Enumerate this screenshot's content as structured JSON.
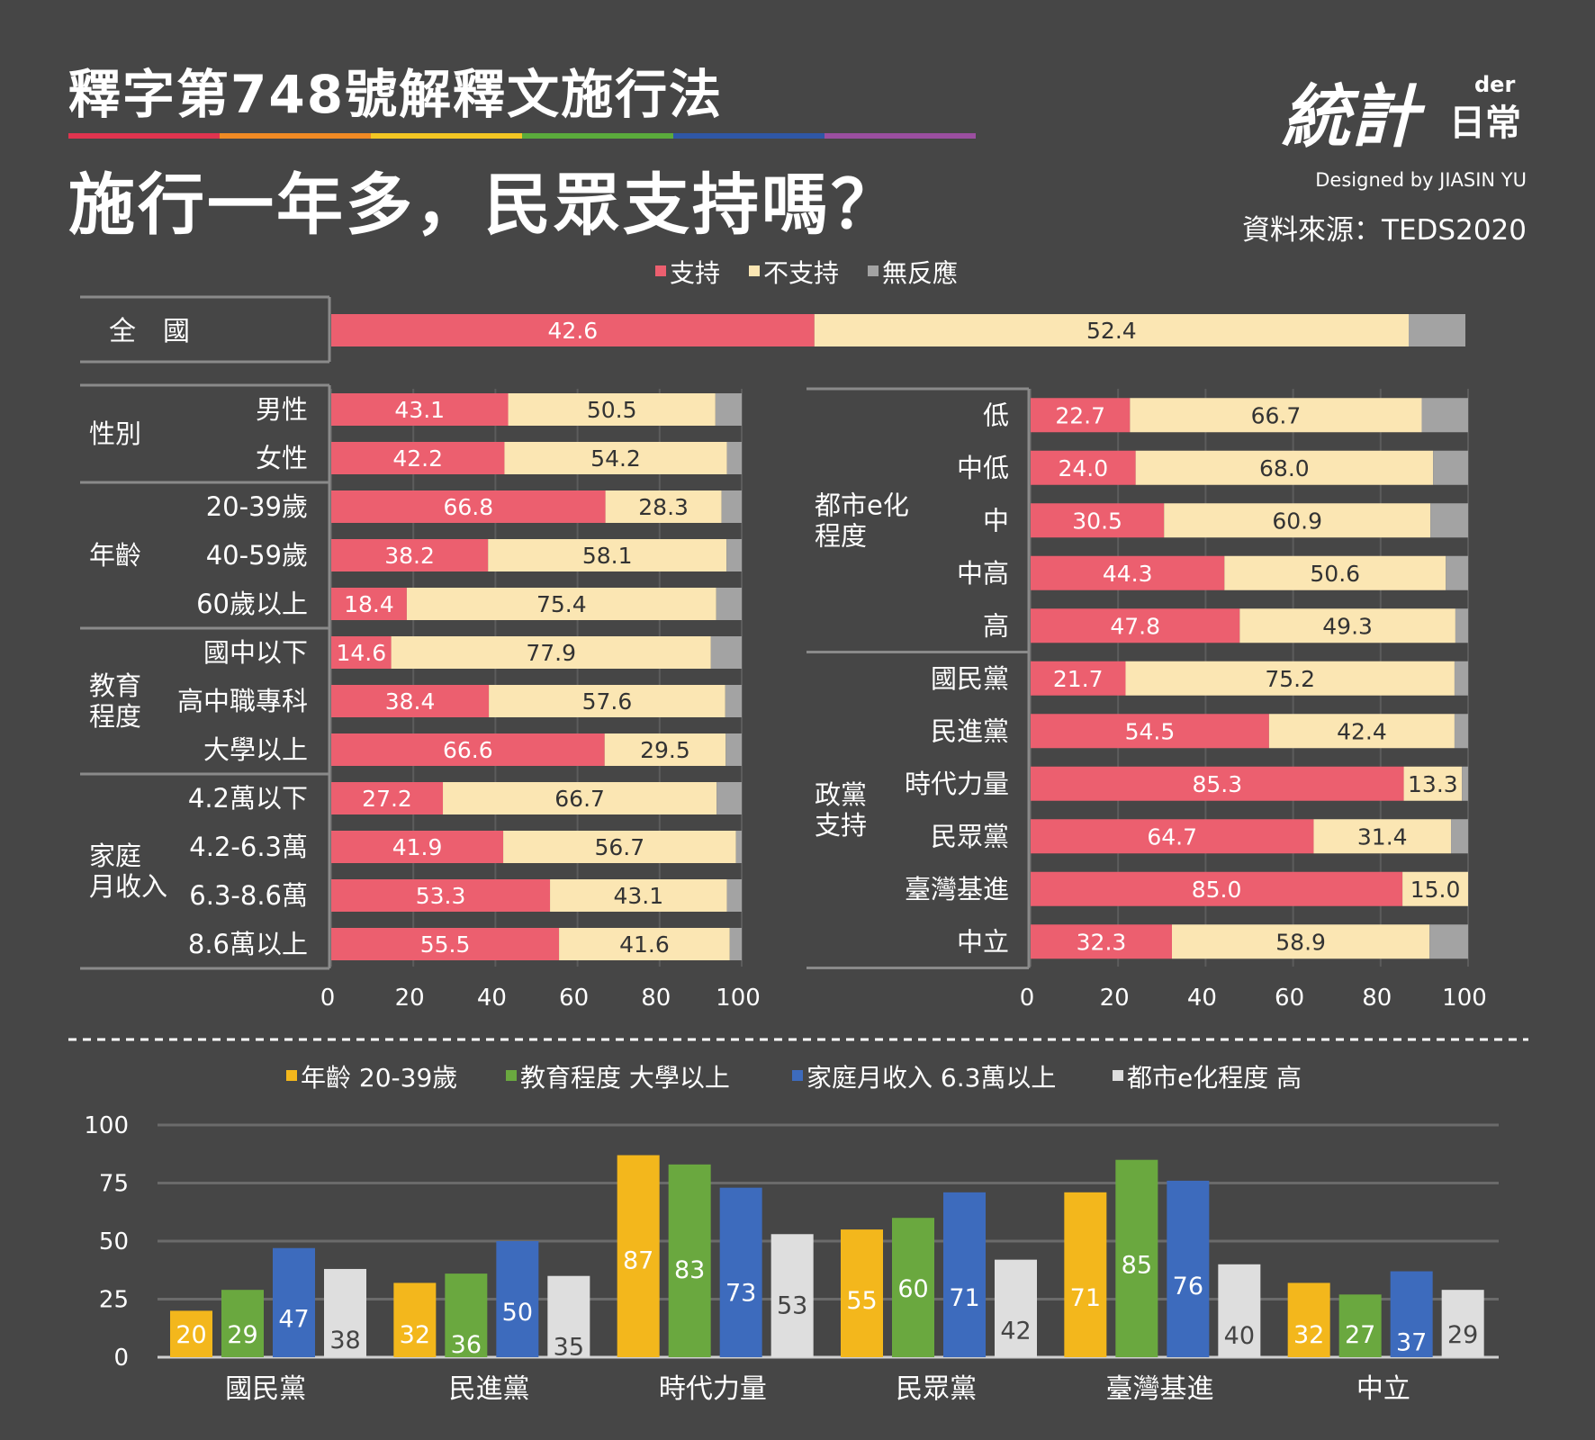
{
  "header": {
    "title_line1": "釋字第748號解釋文施行法",
    "title_line2": "施行一年多，民眾支持嗎？",
    "designer": "Designed by JIASIN YU",
    "source": "資料來源：TEDS2020",
    "logo_text_main": "統計",
    "logo_text_der": "der",
    "logo_text_daily": "日常",
    "rainbow_colors": [
      "#e0344f",
      "#f08a24",
      "#f3c623",
      "#5bab3c",
      "#2f57a6",
      "#9b4fa0"
    ]
  },
  "colors": {
    "support": "#ec5f6f",
    "not_support": "#fbe6b3",
    "no_response": "#a3a3a3",
    "background": "#464646",
    "grid": "#6b6b6b",
    "age_series": "#f3b71c",
    "edu_series": "#6aa83f",
    "income_series": "#3d6bbd",
    "urban_series": "#dedede"
  },
  "chart_data": [
    {
      "type": "bar",
      "orientation": "horizontal",
      "stacked": true,
      "legend": [
        "支持",
        "不支持",
        "無反應"
      ],
      "legend_position": "top",
      "xlim": [
        0,
        100
      ],
      "x_ticks": [
        "0",
        "20",
        "40",
        "60",
        "80",
        "100"
      ],
      "national": {
        "label": "全　國",
        "support": 42.6,
        "not_support": 52.4
      },
      "left_groups": [
        {
          "group": "性別",
          "rows": [
            {
              "label": "男性",
              "support": 43.1,
              "not_support": 50.5
            },
            {
              "label": "女性",
              "support": 42.2,
              "not_support": 54.2
            }
          ]
        },
        {
          "group": "年齡",
          "rows": [
            {
              "label": "20-39歲",
              "support": 66.8,
              "not_support": 28.3
            },
            {
              "label": "40-59歲",
              "support": 38.2,
              "not_support": 58.1
            },
            {
              "label": "60歲以上",
              "support": 18.4,
              "not_support": 75.4
            }
          ]
        },
        {
          "group": "教育程度",
          "group_lines": [
            "教育",
            "程度"
          ],
          "rows": [
            {
              "label": "國中以下",
              "support": 14.6,
              "not_support": 77.9
            },
            {
              "label": "高中職專科",
              "support": 38.4,
              "not_support": 57.6
            },
            {
              "label": "大學以上",
              "support": 66.6,
              "not_support": 29.5
            }
          ]
        },
        {
          "group": "家庭月收入",
          "group_lines": [
            "家庭",
            "月收入"
          ],
          "rows": [
            {
              "label": "4.2萬以下",
              "support": 27.2,
              "not_support": 66.7
            },
            {
              "label": "4.2-6.3萬",
              "support": 41.9,
              "not_support": 56.7
            },
            {
              "label": "6.3-8.6萬",
              "support": 53.3,
              "not_support": 43.1
            },
            {
              "label": "8.6萬以上",
              "support": 55.5,
              "not_support": 41.6
            }
          ]
        }
      ],
      "right_groups": [
        {
          "group": "都市e化程度",
          "group_lines": [
            "都市e化",
            "程度"
          ],
          "rows": [
            {
              "label": "低",
              "support": 22.7,
              "not_support": 66.7
            },
            {
              "label": "中低",
              "support": 24.0,
              "not_support": 68.0
            },
            {
              "label": "中",
              "support": 30.5,
              "not_support": 60.9
            },
            {
              "label": "中高",
              "support": 44.3,
              "not_support": 50.6
            },
            {
              "label": "高",
              "support": 47.8,
              "not_support": 49.3
            }
          ]
        },
        {
          "group": "政黨支持",
          "group_lines": [
            "政黨",
            "支持"
          ],
          "rows": [
            {
              "label": "國民黨",
              "support": 21.7,
              "not_support": 75.2
            },
            {
              "label": "民進黨",
              "support": 54.5,
              "not_support": 42.4
            },
            {
              "label": "時代力量",
              "support": 85.3,
              "not_support": 13.3
            },
            {
              "label": "民眾黨",
              "support": 64.7,
              "not_support": 31.4
            },
            {
              "label": "臺灣基進",
              "support": 85.0,
              "not_support": 15.0
            },
            {
              "label": "中立",
              "support": 32.3,
              "not_support": 58.9
            }
          ]
        }
      ]
    },
    {
      "type": "bar",
      "orientation": "vertical",
      "categories": [
        "國民黨",
        "民進黨",
        "時代力量",
        "民眾黨",
        "臺灣基進",
        "中立"
      ],
      "ylim": [
        0,
        100
      ],
      "y_ticks": [
        "0",
        "25",
        "50",
        "75",
        "100"
      ],
      "legend_position": "top",
      "grid": true,
      "series": [
        {
          "name": "年齡 20-39歲",
          "values": [
            20,
            32,
            87,
            55,
            71,
            32
          ]
        },
        {
          "name": "教育程度 大學以上",
          "values": [
            29,
            36,
            83,
            60,
            85,
            27
          ]
        },
        {
          "name": "家庭月收入 6.3萬以上",
          "values": [
            47,
            50,
            73,
            71,
            76,
            37
          ]
        },
        {
          "name": "都市e化程度 高",
          "values": [
            38,
            35,
            53,
            42,
            40,
            29
          ]
        }
      ]
    }
  ]
}
